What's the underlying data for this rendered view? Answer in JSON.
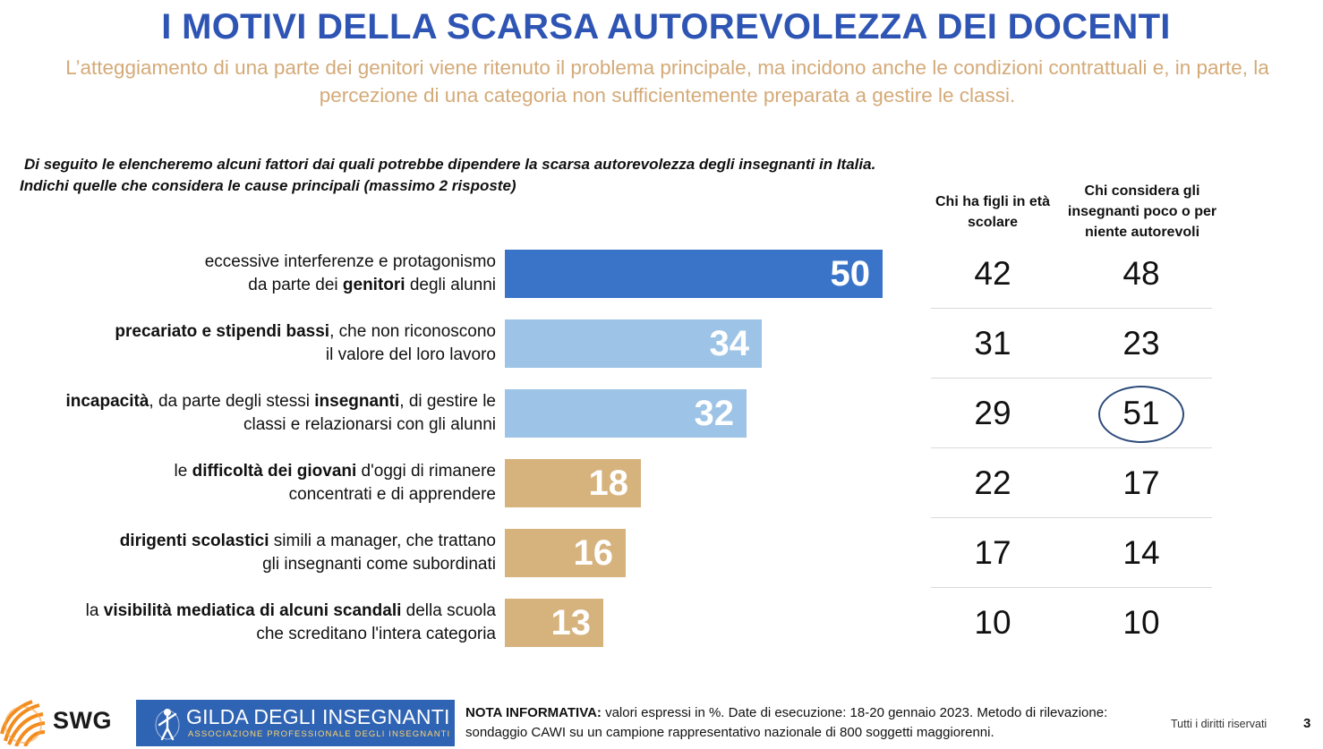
{
  "header": {
    "title": "I MOTIVI DELLA SCARSA AUTOREVOLEZZA DEI DOCENTI",
    "subtitle": "L’atteggiamento di una parte dei genitori viene ritenuto il problema principale, ma incidono anche le condizioni contrattuali e, in parte, la percezione di una categoria non sufficientemente preparata a gestire le classi."
  },
  "question": {
    "line1": "Di seguito le elencheremo alcuni fattori dai quali potrebbe dipendere la scarsa autorevolezza degli insegnanti in Italia.",
    "line2": "Indichi quelle che considera le cause principali (massimo 2 risposte)"
  },
  "columns": {
    "col1": "Chi ha figli in età scolare",
    "col2": "Chi considera gli insegnanti poco o per niente autorevoli"
  },
  "colors": {
    "dark_blue": "#3a74c8",
    "light_blue": "#9dc3e6",
    "tan": "#d6b27d",
    "highlight_circle": "#2d4b7a"
  },
  "chart_data": {
    "type": "bar",
    "orientation": "horizontal",
    "categories": [
      "eccessive interferenze e protagonismo da parte dei genitori degli alunni",
      "precariato e stipendi bassi, che non riconoscono il valore del loro lavoro",
      "incapacità, da parte degli stessi insegnanti, di gestire le classi e relazionarsi con gli alunni",
      "le difficoltà dei giovani d'oggi di rimanere concentrati e di apprendere",
      "dirigenti scolastici simili a manager, che trattano gli insegnanti come subordinati",
      "la visibilità mediatica di alcuni scandali della scuola che screditano l'intera categoria"
    ],
    "label_parts": [
      [
        {
          "t": "eccessive interferenze e protagonismo",
          "b": false
        },
        {
          "br": true
        },
        {
          "t": "da parte dei ",
          "b": false
        },
        {
          "t": "genitori",
          "b": true
        },
        {
          "t": " degli alunni",
          "b": false
        }
      ],
      [
        {
          "t": "precariato e stipendi bassi",
          "b": true
        },
        {
          "t": ", che non riconoscono",
          "b": false
        },
        {
          "br": true
        },
        {
          "t": "il valore del loro lavoro",
          "b": false
        }
      ],
      [
        {
          "t": "incapacità",
          "b": true
        },
        {
          "t": ", da parte degli stessi ",
          "b": false
        },
        {
          "t": "insegnanti",
          "b": true
        },
        {
          "t": ", di gestire le",
          "b": false
        },
        {
          "br": true
        },
        {
          "t": "classi e relazionarsi con gli alunni",
          "b": false
        }
      ],
      [
        {
          "t": "le ",
          "b": false
        },
        {
          "t": "difficoltà dei giovani",
          "b": true
        },
        {
          "t": " d'oggi di rimanere",
          "b": false
        },
        {
          "br": true
        },
        {
          "t": "concentrati e di apprendere",
          "b": false
        }
      ],
      [
        {
          "t": "dirigenti scolastici",
          "b": true
        },
        {
          "t": " simili a manager, che trattano",
          "b": false
        },
        {
          "br": true
        },
        {
          "t": "gli insegnanti come subordinati",
          "b": false
        }
      ],
      [
        {
          "t": "la ",
          "b": false
        },
        {
          "t": "visibilità mediatica di alcuni scandali",
          "b": true
        },
        {
          "t": " della scuola",
          "b": false
        },
        {
          "br": true
        },
        {
          "t": "che screditano l'intera categoria",
          "b": false
        }
      ]
    ],
    "values": [
      50,
      34,
      32,
      18,
      16,
      13
    ],
    "bar_colors": [
      "#3a74c8",
      "#9dc3e6",
      "#9dc3e6",
      "#d6b27d",
      "#d6b27d",
      "#d6b27d"
    ],
    "series": [
      {
        "name": "Chi ha figli in età scolare",
        "values": [
          42,
          31,
          29,
          22,
          17,
          10
        ]
      },
      {
        "name": "Chi considera gli insegnanti poco o per niente autorevoli",
        "values": [
          48,
          23,
          51,
          17,
          14,
          10
        ]
      }
    ],
    "highlighted": {
      "series": 1,
      "index": 2
    },
    "unit": "%",
    "xlim": [
      0,
      50
    ]
  },
  "footer": {
    "swg_logo": "SWG",
    "gilda_title": "GILDA DEGLI INSEGNANTI",
    "gilda_subtitle": "ASSOCIAZIONE PROFESSIONALE DEGLI INSEGNANTI",
    "nota_label": "NOTA INFORMATIVA:",
    "nota_text": " valori espressi in %. Date di esecuzione: 18-20 gennaio 2023.  Metodo di rilevazione: sondaggio CAWI su un campione rappresentativo nazionale di 800 soggetti maggiorenni.",
    "rights": "Tutti i diritti riservati",
    "page_number": "3"
  }
}
